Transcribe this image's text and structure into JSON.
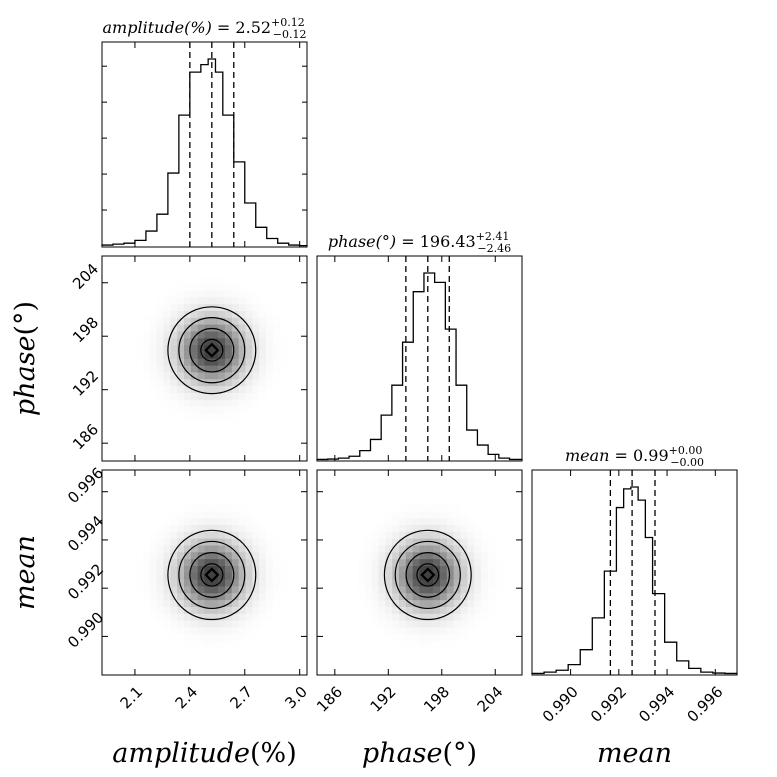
{
  "chart_data": {
    "type": "corner",
    "parameters": [
      {
        "key": "amplitude",
        "label_name": "amplitude",
        "label_unit": "(%)",
        "range": [
          1.92,
          3.04
        ],
        "ticks": [
          2.1,
          2.4,
          2.7,
          3.0
        ],
        "tick_labels": [
          "2.1",
          "2.4",
          "2.7",
          "3.0"
        ],
        "median": 2.52,
        "err_plus": 0.12,
        "err_minus": 0.12,
        "quantiles": [
          2.4,
          2.52,
          2.64
        ],
        "title_var": "amplitude(%)",
        "title_val": " = 2.52",
        "title_plus": "+0.12",
        "title_minus": "−0.12",
        "hist_edges": [
          1.92,
          1.98,
          2.04,
          2.1,
          2.16,
          2.22,
          2.28,
          2.34,
          2.4,
          2.46,
          2.5,
          2.54,
          2.58,
          2.64,
          2.7,
          2.76,
          2.82,
          2.88,
          2.94,
          3.0,
          3.04
        ],
        "hist_counts": [
          0.005,
          0.01,
          0.015,
          0.03,
          0.08,
          0.17,
          0.39,
          0.7,
          0.93,
          0.97,
          1.0,
          0.93,
          0.7,
          0.45,
          0.23,
          0.1,
          0.04,
          0.015,
          0.005,
          0.002
        ]
      },
      {
        "key": "phase",
        "label_name": "phase",
        "label_unit": "(°)",
        "range": [
          184.0,
          207.0
        ],
        "ticks": [
          186,
          192,
          198,
          204
        ],
        "tick_labels": [
          "186",
          "192",
          "198",
          "204"
        ],
        "median": 196.43,
        "err_plus": 2.41,
        "err_minus": 2.46,
        "quantiles": [
          193.97,
          196.43,
          198.84
        ],
        "title_var": "phase(°)",
        "title_val": " = 196.43",
        "title_plus": "+2.41",
        "title_minus": "−2.46",
        "hist_edges": [
          184.0,
          185.2,
          186.4,
          187.6,
          188.8,
          190.0,
          191.2,
          192.4,
          193.6,
          194.8,
          196.0,
          197.2,
          198.4,
          199.6,
          200.8,
          202.0,
          203.2,
          204.4,
          205.6,
          207.0
        ],
        "hist_counts": [
          0.003,
          0.005,
          0.01,
          0.02,
          0.05,
          0.11,
          0.24,
          0.4,
          0.63,
          0.9,
          1.0,
          0.95,
          0.7,
          0.4,
          0.16,
          0.08,
          0.03,
          0.01,
          0.003
        ]
      },
      {
        "key": "mean",
        "label_name": "mean",
        "label_unit": "",
        "range": [
          0.9884,
          0.9969
        ],
        "ticks": [
          0.99,
          0.992,
          0.994,
          0.996
        ],
        "tick_labels": [
          "0.990",
          "0.992",
          "0.994",
          "0.996"
        ],
        "median": 0.99,
        "err_plus": 0.0,
        "err_minus": 0.0,
        "quantiles": [
          0.99165,
          0.99255,
          0.9935
        ],
        "title_var": "mean",
        "title_val": " = 0.99",
        "title_plus": "+0.00",
        "title_minus": "−0.00",
        "hist_edges": [
          0.9884,
          0.9889,
          0.9894,
          0.9899,
          0.9904,
          0.9909,
          0.9914,
          0.9919,
          0.9922,
          0.9925,
          0.9928,
          0.9931,
          0.9934,
          0.9939,
          0.9944,
          0.9949,
          0.9954,
          0.9959,
          0.9964,
          0.9969
        ],
        "hist_counts": [
          0.003,
          0.01,
          0.02,
          0.05,
          0.13,
          0.3,
          0.55,
          0.89,
          0.99,
          1.0,
          0.93,
          0.73,
          0.43,
          0.17,
          0.07,
          0.03,
          0.01,
          0.005,
          0.003
        ]
      }
    ],
    "contours_2d": {
      "levels_sigma": [
        0.5,
        1.0,
        1.5,
        2.0
      ],
      "correlation": 0.0
    }
  }
}
